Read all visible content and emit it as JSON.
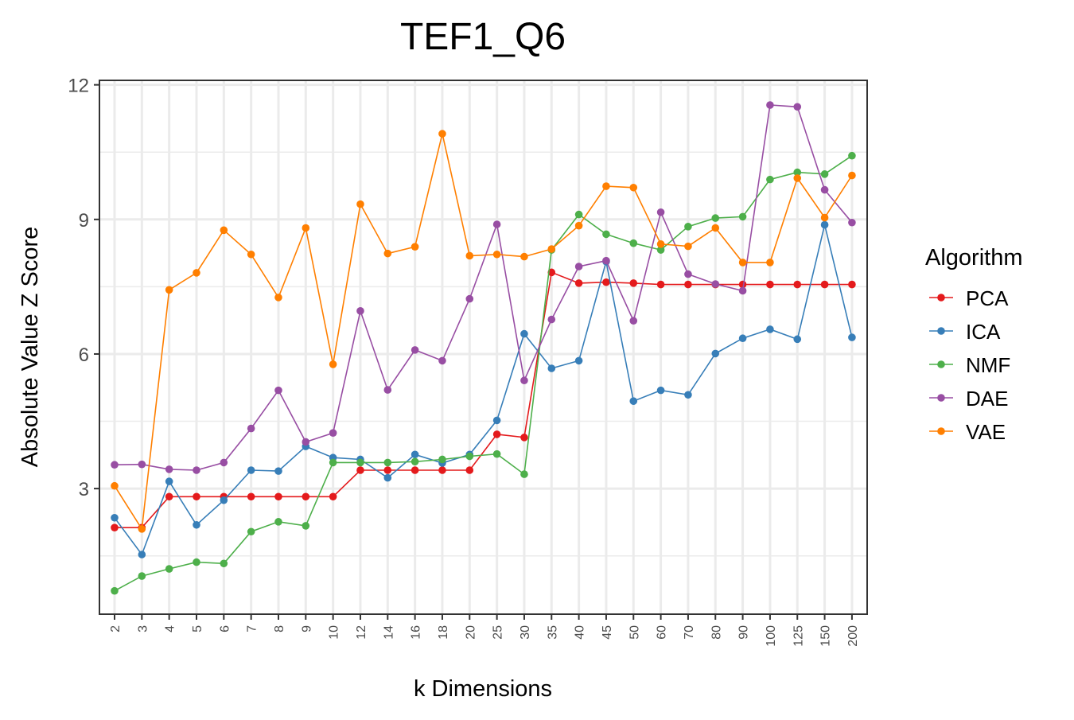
{
  "chart_data": {
    "type": "line",
    "title": "TEF1_Q6",
    "xlabel": "k Dimensions",
    "ylabel": "Absolute Value Z Score",
    "categories": [
      "2",
      "3",
      "4",
      "5",
      "6",
      "7",
      "8",
      "9",
      "10",
      "12",
      "14",
      "16",
      "18",
      "20",
      "25",
      "30",
      "35",
      "40",
      "45",
      "50",
      "60",
      "70",
      "80",
      "90",
      "100",
      "125",
      "150",
      "200"
    ],
    "yticks": [
      3,
      6,
      9,
      12
    ],
    "ylim": [
      0.2,
      12.1
    ],
    "grid": true,
    "legend": {
      "title": "Algorithm",
      "position": "right"
    },
    "series": [
      {
        "name": "PCA",
        "color": "#e41a1c",
        "values": [
          2.13,
          2.13,
          2.82,
          2.82,
          2.82,
          2.82,
          2.82,
          2.82,
          2.82,
          3.41,
          3.41,
          3.41,
          3.41,
          3.41,
          4.21,
          4.14,
          7.82,
          7.58,
          7.6,
          7.58,
          7.55,
          7.55,
          7.55,
          7.55,
          7.55,
          7.55,
          7.55,
          7.55
        ]
      },
      {
        "name": "ICA",
        "color": "#377eb8",
        "values": [
          2.35,
          1.53,
          3.16,
          2.19,
          2.74,
          3.41,
          3.39,
          3.94,
          3.69,
          3.65,
          3.24,
          3.76,
          3.57,
          3.76,
          4.52,
          6.45,
          5.68,
          5.85,
          8.06,
          4.95,
          5.19,
          5.09,
          6.01,
          6.35,
          6.55,
          6.33,
          8.88,
          6.37
        ]
      },
      {
        "name": "NMF",
        "color": "#4daf4a",
        "values": [
          0.72,
          1.05,
          1.21,
          1.36,
          1.33,
          2.04,
          2.26,
          2.17,
          3.58,
          3.58,
          3.58,
          3.6,
          3.65,
          3.72,
          3.77,
          3.32,
          8.32,
          9.11,
          8.67,
          8.47,
          8.32,
          8.84,
          9.03,
          9.06,
          9.89,
          10.05,
          10.01,
          10.42
        ]
      },
      {
        "name": "DAE",
        "color": "#984ea3",
        "values": [
          3.53,
          3.54,
          3.43,
          3.41,
          3.58,
          4.34,
          5.19,
          4.04,
          4.24,
          6.96,
          5.2,
          6.09,
          5.85,
          7.23,
          8.89,
          5.41,
          6.77,
          7.95,
          8.08,
          6.74,
          9.16,
          7.78,
          7.56,
          7.41,
          11.55,
          11.51,
          9.66,
          8.93
        ]
      },
      {
        "name": "VAE",
        "color": "#ff7f00",
        "values": [
          3.06,
          2.1,
          7.43,
          7.81,
          8.76,
          8.22,
          7.26,
          8.81,
          5.77,
          9.34,
          8.24,
          8.39,
          10.91,
          8.19,
          8.22,
          8.17,
          8.34,
          8.86,
          9.74,
          9.71,
          8.45,
          8.4,
          8.81,
          8.04,
          8.04,
          9.92,
          9.04,
          9.98
        ]
      }
    ]
  }
}
